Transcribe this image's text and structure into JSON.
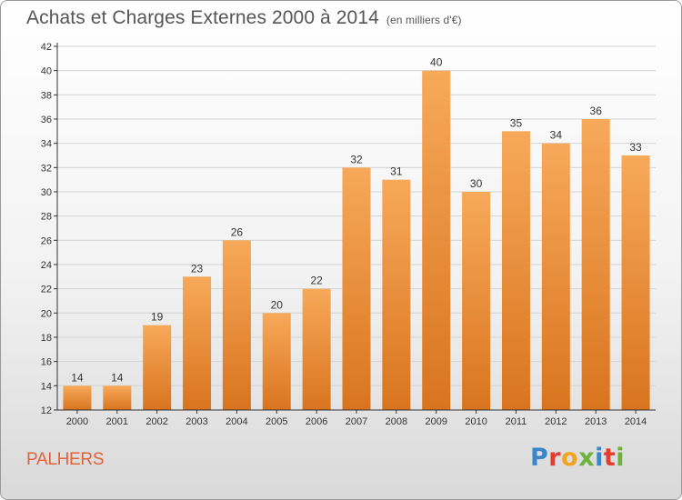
{
  "header": {
    "title": "Achats et Charges Externes 2000 à 2014",
    "unit": "(en milliers d'€)"
  },
  "footer": {
    "commune": "PALHERS",
    "logo_text": "Proxiti",
    "logo_colors": [
      "#3a86c8",
      "#e63b2e",
      "#f2a41d",
      "#6bb33a",
      "#3a86c8",
      "#e63b2e",
      "#6bb33a"
    ]
  },
  "colors": {
    "bar_top": "#f7a95a",
    "bar_bottom": "#d9741e",
    "grid": "#d4d4d4",
    "axis": "#333333"
  },
  "chart_data": {
    "type": "bar",
    "title": "Achats et Charges Externes 2000 à 2014",
    "subtitle": "(en milliers d'€)",
    "categories": [
      "2000",
      "2001",
      "2002",
      "2003",
      "2004",
      "2005",
      "2006",
      "2007",
      "2008",
      "2009",
      "2010",
      "2011",
      "2012",
      "2013",
      "2014"
    ],
    "values": [
      14,
      14,
      19,
      23,
      26,
      20,
      22,
      32,
      31,
      40,
      30,
      35,
      34,
      36,
      33
    ],
    "ylim": [
      12,
      42
    ],
    "yticks": [
      12,
      14,
      16,
      18,
      20,
      22,
      24,
      26,
      28,
      30,
      32,
      34,
      36,
      38,
      40,
      42
    ],
    "grid": true,
    "xlabel": "",
    "ylabel": ""
  }
}
